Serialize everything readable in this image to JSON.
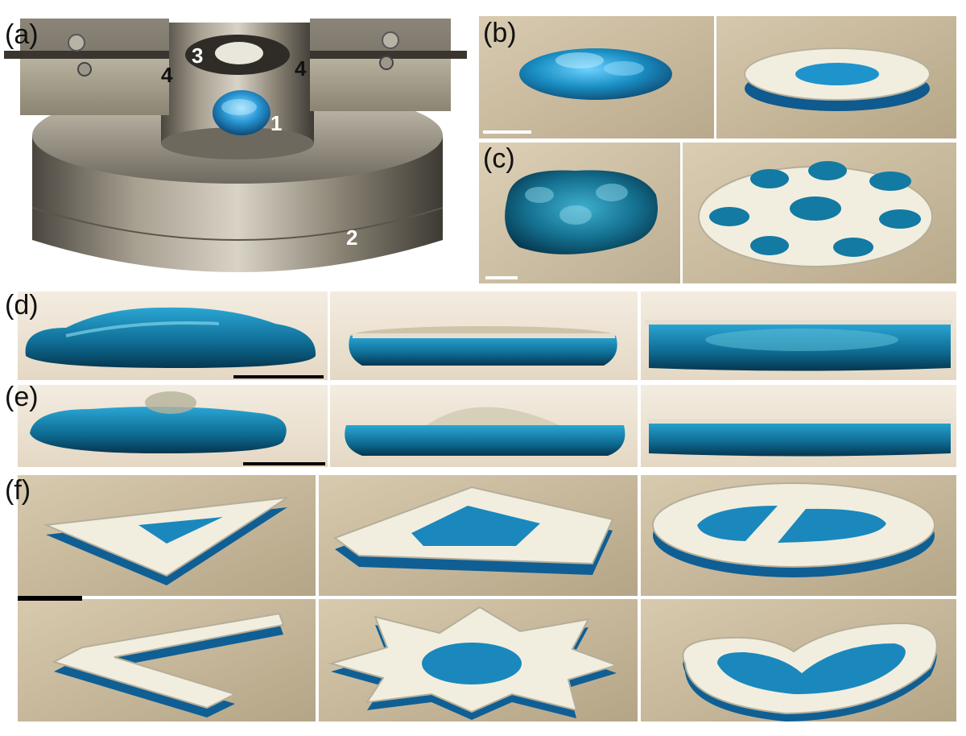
{
  "panel_labels": {
    "a": "(a)",
    "b": "(b)",
    "c": "(c)",
    "d": "(d)",
    "e": "(e)",
    "f": "(f)"
  },
  "callouts": {
    "n1": "1",
    "n2": "2",
    "n3": "3",
    "n4_left": "4",
    "n4_right": "4"
  },
  "colors": {
    "liquid_blue": "#1a8fc4",
    "liquid_dark": "#0b4f7a",
    "plate_white": "#f1eedf",
    "metal": "#8e877a",
    "background_beige": "#cdbfa6",
    "scale_bar_black": "#000000",
    "scale_bar_white": "#ffffff"
  }
}
